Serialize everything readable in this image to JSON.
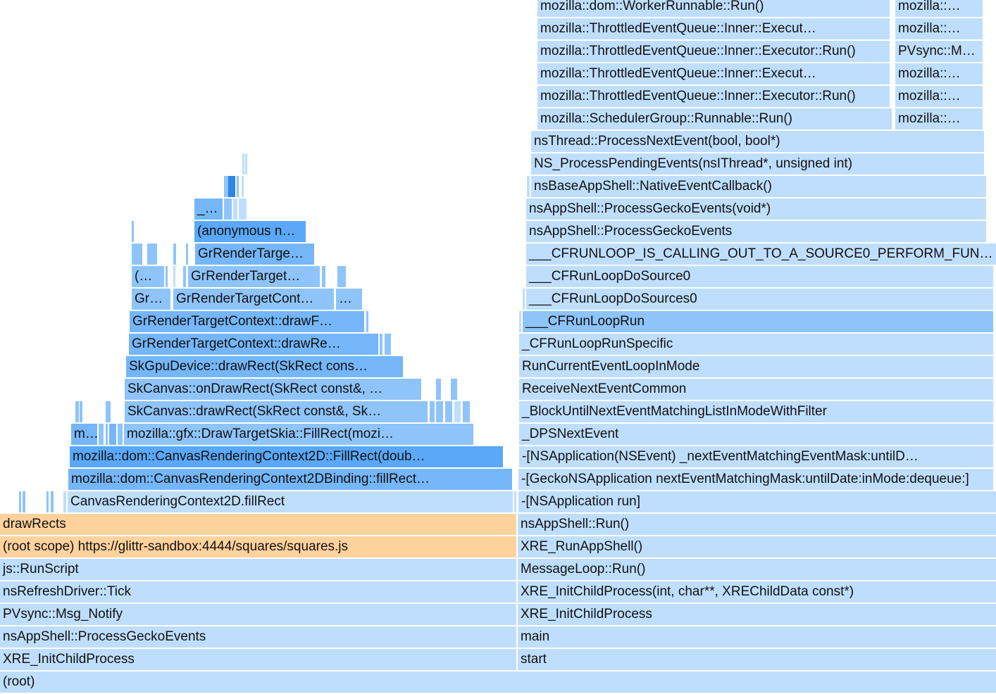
{
  "colors": {
    "c1": "#bfdefd",
    "c2": "#a7d2fb",
    "c3": "#8ec4fa",
    "c4": "#75b6f8",
    "c5": "#5aa8f7",
    "c6": "#2f84ea",
    "js": "#fed29c"
  },
  "frames": [
    {
      "label": "(root)",
      "l": 0,
      "r": 1414,
      "row": 0,
      "c": "c1"
    },
    {
      "label": "XRE_InitChildProcess",
      "l": 0,
      "r": 733,
      "row": 1,
      "c": "c1"
    },
    {
      "label": "start",
      "l": 735,
      "r": 1414,
      "row": 1,
      "c": "c1"
    },
    {
      "label": "nsAppShell::ProcessGeckoEvents",
      "l": 0,
      "r": 733,
      "row": 2,
      "c": "c1"
    },
    {
      "label": "main",
      "l": 735,
      "r": 1414,
      "row": 2,
      "c": "c1"
    },
    {
      "label": "PVsync::Msg_Notify",
      "l": 0,
      "r": 733,
      "row": 3,
      "c": "c1"
    },
    {
      "label": "XRE_InitChildProcess",
      "l": 735,
      "r": 1414,
      "row": 3,
      "c": "c1"
    },
    {
      "label": "nsRefreshDriver::Tick",
      "l": 0,
      "r": 733,
      "row": 4,
      "c": "c1"
    },
    {
      "label": "XRE_InitChildProcess(int, char**, XREChildData const*)",
      "l": 735,
      "r": 1414,
      "row": 4,
      "c": "c1"
    },
    {
      "label": "js::RunScript",
      "l": 0,
      "r": 733,
      "row": 5,
      "c": "c1"
    },
    {
      "label": "MessageLoop::Run()",
      "l": 735,
      "r": 1414,
      "row": 5,
      "c": "c1"
    },
    {
      "label": "(root scope) https://glittr-sandbox:4444/squares/squares.js",
      "l": 0,
      "r": 733,
      "row": 6,
      "c": "js"
    },
    {
      "label": "XRE_RunAppShell()",
      "l": 735,
      "r": 1414,
      "row": 6,
      "c": "c1"
    },
    {
      "label": "drawRects",
      "l": 0,
      "r": 733,
      "row": 7,
      "c": "js"
    },
    {
      "label": "nsAppShell::Run()",
      "l": 735,
      "r": 1414,
      "row": 7,
      "c": "c1"
    },
    {
      "label": "",
      "l": 27,
      "r": 30,
      "row": 8,
      "c": "c3"
    },
    {
      "label": "",
      "l": 32,
      "r": 36,
      "row": 8,
      "c": "c3"
    },
    {
      "label": "",
      "l": 66,
      "r": 69,
      "row": 8,
      "c": "c3"
    },
    {
      "label": "",
      "l": 72,
      "r": 76,
      "row": 8,
      "c": "c3"
    },
    {
      "label": "",
      "l": 90,
      "r": 94,
      "row": 8,
      "c": "c1"
    },
    {
      "label": "CanvasRenderingContext2D.fillRect",
      "l": 96,
      "r": 728,
      "row": 8,
      "c": "c1"
    },
    {
      "label": "",
      "l": 730,
      "r": 733,
      "row": 8,
      "c": "c1"
    },
    {
      "label": "-[NSApplication run]",
      "l": 736,
      "r": 1414,
      "row": 8,
      "c": "c1"
    },
    {
      "label": "mozilla::dom::CanvasRenderingContext2DBinding::fillRect…",
      "l": 97,
      "r": 727,
      "row": 9,
      "c": "c4"
    },
    {
      "label": "-[GeckoNSApplication nextEventMatchingMask:untilDate:inMode:dequeue:]",
      "l": 736,
      "r": 1410,
      "row": 9,
      "c": "c1"
    },
    {
      "label": "mozilla::dom::CanvasRenderingContext2D::FillRect(doub…",
      "l": 99,
      "r": 714,
      "row": 10,
      "c": "c5"
    },
    {
      "label": "-[NSApplication(NSEvent) _nextEventMatchingEventMask:untilD…",
      "l": 737,
      "r": 1410,
      "row": 10,
      "c": "c1"
    },
    {
      "label": "m…",
      "l": 101,
      "r": 138,
      "row": 11,
      "c": "c4"
    },
    {
      "label": "",
      "l": 140,
      "r": 147,
      "row": 11,
      "c": "c3"
    },
    {
      "label": "",
      "l": 150,
      "r": 153,
      "row": 11,
      "c": "c3"
    },
    {
      "label": "",
      "l": 155,
      "r": 165,
      "row": 11,
      "c": "c4"
    },
    {
      "label": "",
      "l": 167,
      "r": 174,
      "row": 11,
      "c": "c3"
    },
    {
      "label": "mozilla::gfx::DrawTargetSkia::FillRect(mozi…",
      "l": 176,
      "r": 672,
      "row": 11,
      "c": "c3"
    },
    {
      "label": "_DPSNextEvent",
      "l": 737,
      "r": 1410,
      "row": 11,
      "c": "c1"
    },
    {
      "label": "",
      "l": 107,
      "r": 112,
      "row": 12,
      "c": "c3"
    },
    {
      "label": "",
      "l": 113,
      "r": 117,
      "row": 12,
      "c": "c3"
    },
    {
      "label": "",
      "l": 150,
      "r": 157,
      "row": 12,
      "c": "c3"
    },
    {
      "label": "SkCanvas::drawRect(SkRect const&, Sk…",
      "l": 177,
      "r": 607,
      "row": 12,
      "c": "c3"
    },
    {
      "label": "",
      "l": 610,
      "r": 617,
      "row": 12,
      "c": "c3"
    },
    {
      "label": "",
      "l": 619,
      "r": 629,
      "row": 12,
      "c": "c3"
    },
    {
      "label": "",
      "l": 632,
      "r": 642,
      "row": 12,
      "c": "c3"
    },
    {
      "label": "",
      "l": 645,
      "r": 654,
      "row": 12,
      "c": "c1"
    },
    {
      "label": "",
      "l": 657,
      "r": 667,
      "row": 12,
      "c": "c3"
    },
    {
      "label": "_BlockUntilNextEventMatchingListInModeWithFilter",
      "l": 737,
      "r": 1410,
      "row": 12,
      "c": "c1"
    },
    {
      "label": "SkCanvas::onDrawRect(SkRect const&, …",
      "l": 177,
      "r": 598,
      "row": 13,
      "c": "c3"
    },
    {
      "label": "",
      "l": 619,
      "r": 626,
      "row": 13,
      "c": "c3"
    },
    {
      "label": "",
      "l": 640,
      "r": 649,
      "row": 13,
      "c": "c3"
    },
    {
      "label": "ReceiveNextEventCommon",
      "l": 737,
      "r": 1410,
      "row": 13,
      "c": "c1"
    },
    {
      "label": "SkGpuDevice::drawRect(SkRect cons…",
      "l": 179,
      "r": 572,
      "row": 14,
      "c": "c4"
    },
    {
      "label": "RunCurrentEventLoopInMode",
      "l": 737,
      "r": 1410,
      "row": 14,
      "c": "c1"
    },
    {
      "label": "GrRenderTargetContext::drawRe…",
      "l": 183,
      "r": 537,
      "row": 15,
      "c": "c4"
    },
    {
      "label": "",
      "l": 539,
      "r": 543,
      "row": 15,
      "c": "c3"
    },
    {
      "label": "",
      "l": 546,
      "r": 555,
      "row": 15,
      "c": "c3"
    },
    {
      "label": "_CFRunLoopRunSpecific",
      "l": 737,
      "r": 1410,
      "row": 15,
      "c": "c1"
    },
    {
      "label": "GrRenderTargetContext::drawF…",
      "l": 184,
      "r": 517,
      "row": 16,
      "c": "c4"
    },
    {
      "label": "",
      "l": 520,
      "r": 523,
      "row": 16,
      "c": "c3"
    },
    {
      "label": "",
      "l": 737,
      "r": 740,
      "row": 16,
      "c": "c1"
    },
    {
      "label": "___CFRunLoopRun",
      "l": 742,
      "r": 1410,
      "row": 16,
      "c": "c3"
    },
    {
      "label": "Gr…",
      "l": 187,
      "r": 242,
      "row": 17,
      "c": "c3"
    },
    {
      "label": "GrRenderTargetCont…",
      "l": 246,
      "r": 474,
      "row": 17,
      "c": "c3"
    },
    {
      "label": "…",
      "l": 477,
      "r": 514,
      "row": 17,
      "c": "c3"
    },
    {
      "label": "",
      "l": 742,
      "r": 745,
      "row": 17,
      "c": "c1"
    },
    {
      "label": "___CFRunLoopDoSources0",
      "l": 747,
      "r": 1410,
      "row": 17,
      "c": "c1"
    },
    {
      "label": "(…",
      "l": 187,
      "r": 233,
      "row": 18,
      "c": "c3"
    },
    {
      "label": "",
      "l": 235,
      "r": 238,
      "row": 18,
      "c": "c3"
    },
    {
      "label": "",
      "l": 246,
      "r": 249,
      "row": 18,
      "c": "c1"
    },
    {
      "label": "",
      "l": 260,
      "r": 264,
      "row": 18,
      "c": "c3"
    },
    {
      "label": "GrRenderTarget…",
      "l": 267,
      "r": 454,
      "row": 18,
      "c": "c3"
    },
    {
      "label": "",
      "l": 457,
      "r": 462,
      "row": 18,
      "c": "c3"
    },
    {
      "label": "",
      "l": 479,
      "r": 491,
      "row": 18,
      "c": "c3"
    },
    {
      "label": "___CFRunLoopDoSource0",
      "l": 747,
      "r": 1410,
      "row": 18,
      "c": "c1"
    },
    {
      "label": "",
      "l": 187,
      "r": 202,
      "row": 19,
      "c": "c3"
    },
    {
      "label": "",
      "l": 209,
      "r": 223,
      "row": 19,
      "c": "c3"
    },
    {
      "label": "",
      "l": 246,
      "r": 250,
      "row": 19,
      "c": "c3"
    },
    {
      "label": "",
      "l": 264,
      "r": 267,
      "row": 19,
      "c": "c3"
    },
    {
      "label": "GrRenderTarge…",
      "l": 277,
      "r": 446,
      "row": 19,
      "c": "c4"
    },
    {
      "label": "___CFRUNLOOP_IS_CALLING_OUT_TO_A_SOURCE0_PERFORM_FUNCTION__",
      "l": 747,
      "r": 1414,
      "row": 19,
      "c": "c1"
    },
    {
      "label": "",
      "l": 187,
      "r": 190,
      "row": 20,
      "c": "c3"
    },
    {
      "label": "(anonymous n…",
      "l": 276,
      "r": 434,
      "row": 20,
      "c": "c5"
    },
    {
      "label": "nsAppShell::ProcessGeckoEvents",
      "l": 747,
      "r": 1400,
      "row": 20,
      "c": "c1"
    },
    {
      "label": "_…",
      "l": 276,
      "r": 316,
      "row": 21,
      "c": "c4"
    },
    {
      "label": "",
      "l": 318,
      "r": 329,
      "row": 21,
      "c": "c3"
    },
    {
      "label": "",
      "l": 331,
      "r": 337,
      "row": 21,
      "c": "c1"
    },
    {
      "label": "",
      "l": 339,
      "r": 350,
      "row": 21,
      "c": "c1"
    },
    {
      "label": "nsAppShell::ProcessGeckoEvents(void*)",
      "l": 747,
      "r": 1400,
      "row": 21,
      "c": "c1"
    },
    {
      "label": "",
      "l": 318,
      "r": 324,
      "row": 22,
      "c": "c3"
    },
    {
      "label": "",
      "l": 324,
      "r": 334,
      "row": 22,
      "c": "c6"
    },
    {
      "label": "",
      "l": 336,
      "r": 339,
      "row": 22,
      "c": "c3"
    },
    {
      "label": "",
      "l": 343,
      "r": 346,
      "row": 22,
      "c": "c1"
    },
    {
      "label": "",
      "l": 748,
      "r": 752,
      "row": 22,
      "c": "c1"
    },
    {
      "label": "nsBaseAppShell::NativeEventCallback()",
      "l": 754,
      "r": 1400,
      "row": 22,
      "c": "c1"
    },
    {
      "label": "",
      "l": 344,
      "r": 347,
      "row": 23,
      "c": "c1"
    },
    {
      "label": "",
      "l": 348,
      "r": 351,
      "row": 23,
      "c": "c1"
    },
    {
      "label": "NS_ProcessPendingEvents(nsIThread*, unsigned int)",
      "l": 754,
      "r": 1397,
      "row": 23,
      "c": "c1"
    },
    {
      "label": "nsThread::ProcessNextEvent(bool, bool*)",
      "l": 754,
      "r": 1397,
      "row": 24,
      "c": "c1"
    },
    {
      "label": "mozilla::SchedulerGroup::Runnable::Run()",
      "l": 763,
      "r": 1266,
      "row": 25,
      "c": "c1"
    },
    {
      "label": "mozilla::…",
      "l": 1271,
      "r": 1395,
      "row": 25,
      "c": "c1"
    },
    {
      "label": "mozilla::ThrottledEventQueue::Inner::Executor::Run()",
      "l": 763,
      "r": 1263,
      "row": 26,
      "c": "c1"
    },
    {
      "label": "mozilla::…",
      "l": 1271,
      "r": 1395,
      "row": 26,
      "c": "c1"
    },
    {
      "label": "mozilla::ThrottledEventQueue::Inner::Execut…",
      "l": 763,
      "r": 1263,
      "row": 27,
      "c": "c1"
    },
    {
      "label": "mozilla::…",
      "l": 1271,
      "r": 1395,
      "row": 27,
      "c": "c1"
    },
    {
      "label": "mozilla::ThrottledEventQueue::Inner::Executor::Run()",
      "l": 763,
      "r": 1263,
      "row": 28,
      "c": "c1"
    },
    {
      "label": "PVsync::M…",
      "l": 1271,
      "r": 1395,
      "row": 28,
      "c": "c1"
    },
    {
      "label": "mozilla::ThrottledEventQueue::Inner::Execut…",
      "l": 763,
      "r": 1263,
      "row": 29,
      "c": "c1"
    },
    {
      "label": "mozilla::…",
      "l": 1271,
      "r": 1395,
      "row": 29,
      "c": "c1"
    },
    {
      "label": "mozilla::dom::WorkerRunnable::Run()",
      "l": 763,
      "r": 1263,
      "row": 30,
      "c": "c1"
    },
    {
      "label": "mozilla::…",
      "l": 1271,
      "r": 1395,
      "row": 30,
      "c": "c1"
    }
  ]
}
